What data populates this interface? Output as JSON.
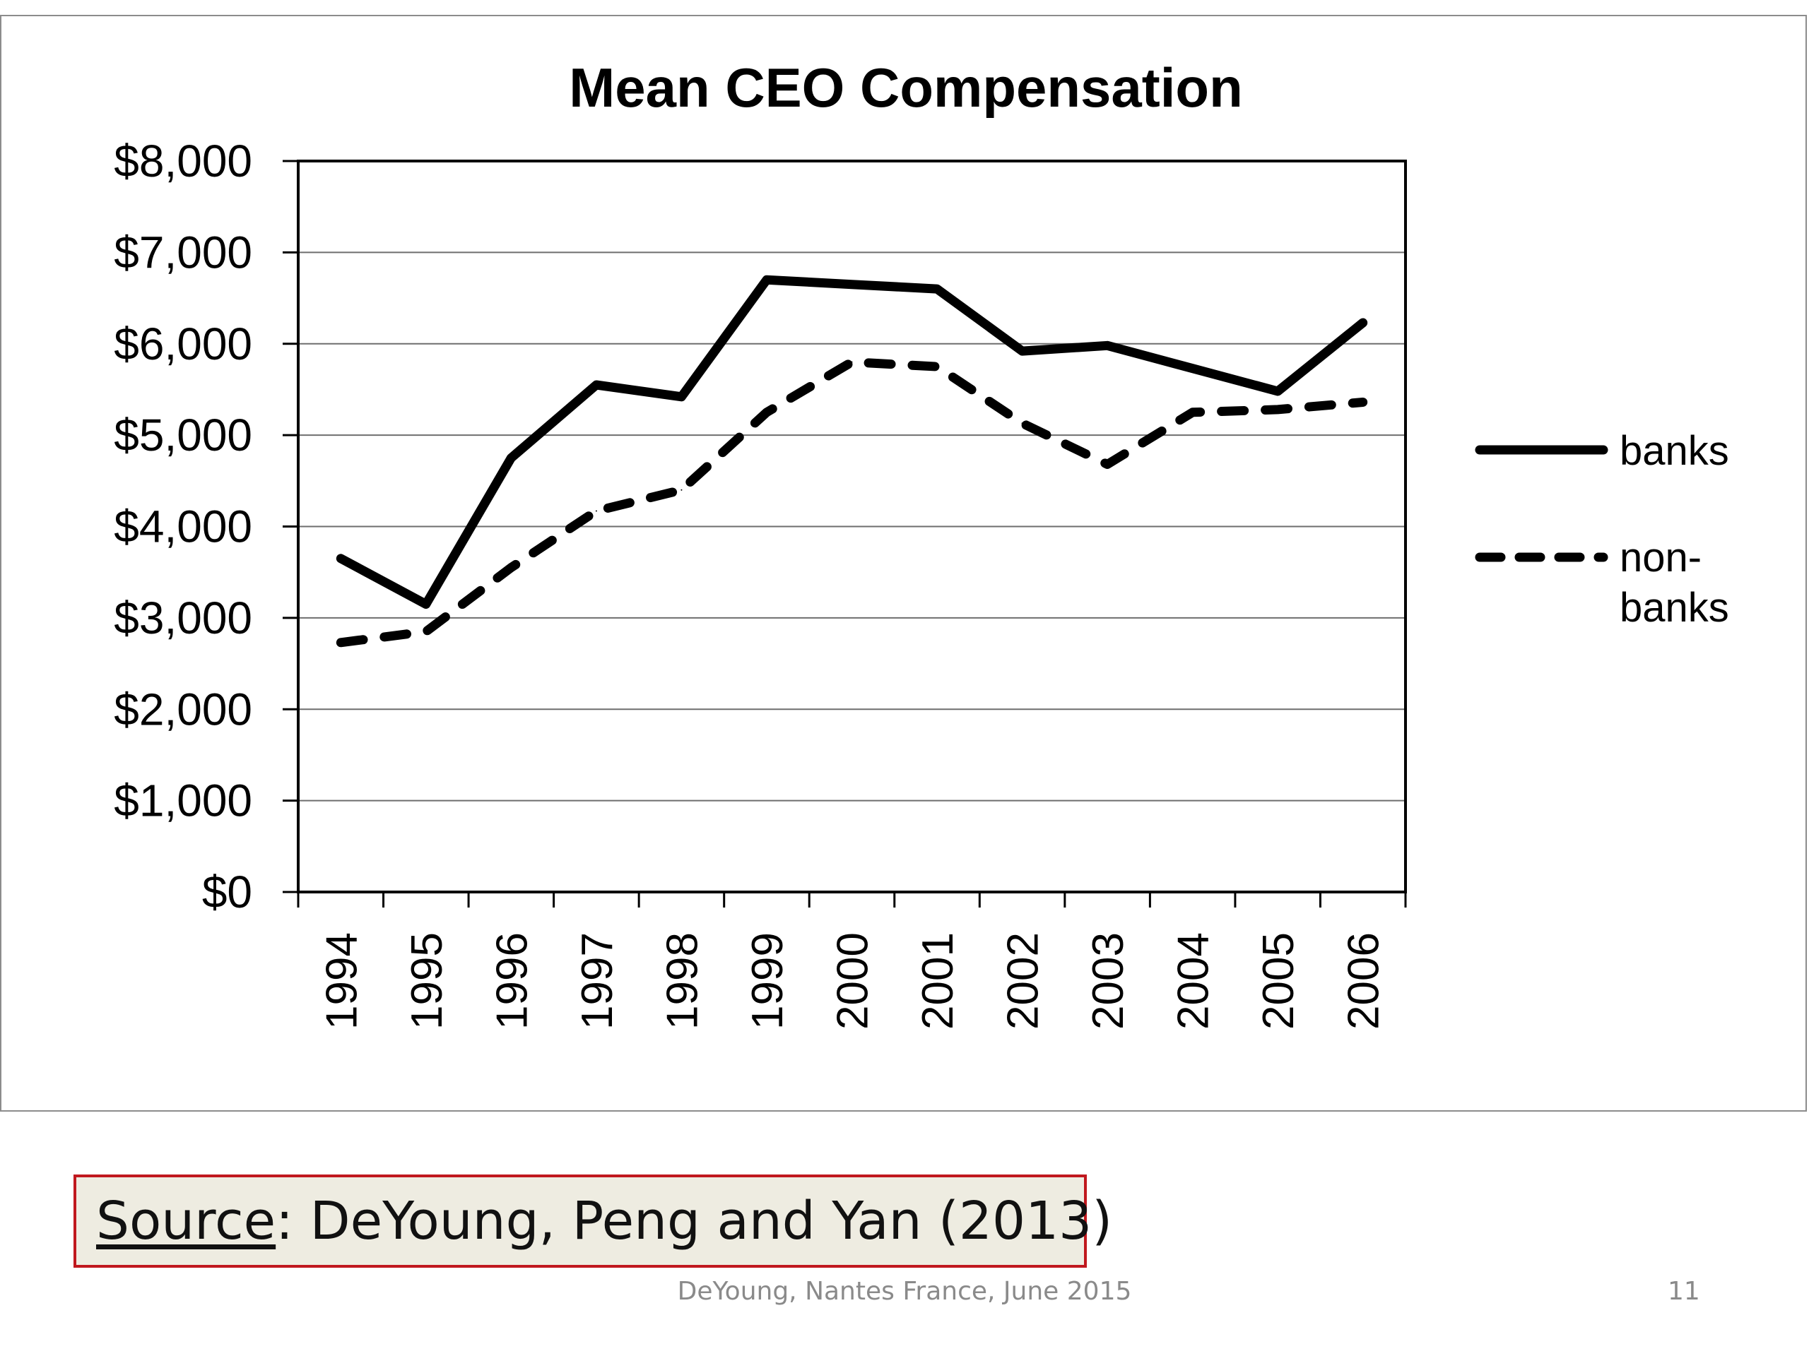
{
  "chart_data": {
    "type": "line",
    "title": "Mean CEO Compensation",
    "xlabel": "",
    "ylabel": "",
    "categories": [
      "1994",
      "1995",
      "1996",
      "1997",
      "1998",
      "1999",
      "2000",
      "2001",
      "2002",
      "2003",
      "2004",
      "2005",
      "2006"
    ],
    "ylim": [
      0,
      8000
    ],
    "yticks": [
      "$0",
      "$1,000",
      "$2,000",
      "$3,000",
      "$4,000",
      "$5,000",
      "$6,000",
      "$7,000",
      "$8,000"
    ],
    "grid": true,
    "legend_position": "right",
    "series": [
      {
        "name": "banks",
        "style": "solid",
        "color": "#000000",
        "values": [
          3650,
          3150,
          4750,
          5550,
          5420,
          6700,
          6650,
          6600,
          5920,
          5980,
          5730,
          5480,
          6230
        ]
      },
      {
        "name": "non-banks",
        "style": "dashed",
        "color": "#000000",
        "values": [
          2730,
          2850,
          3550,
          4170,
          4400,
          5250,
          5800,
          5750,
          5130,
          4680,
          5250,
          5280,
          5360
        ]
      }
    ]
  },
  "legend": {
    "banks_label": "banks",
    "nonbanks_line1": "non-",
    "nonbanks_line2": "banks"
  },
  "source": {
    "label": "Source",
    "text": ":  DeYoung, Peng and Yan (2013)"
  },
  "footer": {
    "text": "DeYoung, Nantes France, June 2015",
    "page_number": "11"
  }
}
